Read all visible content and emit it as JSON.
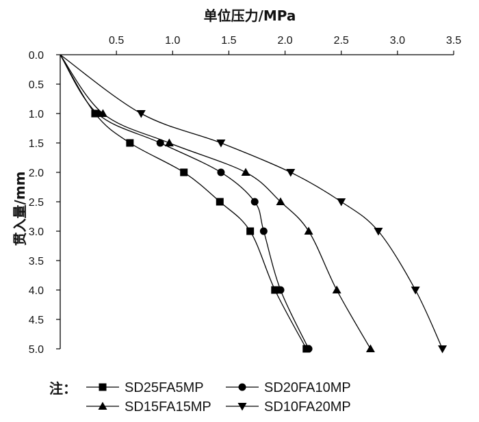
{
  "chart_data": {
    "type": "line",
    "title": "",
    "xlabel": "单位压力/MPa",
    "ylabel": "贯入量/mm",
    "x_ticks": [
      "0.5",
      "1.0",
      "1.5",
      "2.0",
      "2.5",
      "3.0",
      "3.5"
    ],
    "y_ticks": [
      "0.0",
      "0.5",
      "1.0",
      "1.5",
      "2.0",
      "2.5",
      "3.0",
      "3.5",
      "4.0",
      "4.5",
      "5.0"
    ],
    "xlim": [
      0,
      3.5
    ],
    "ylim": [
      0,
      5
    ],
    "x_axis_position": "top",
    "y_axis_inverted": true,
    "grid": false,
    "legend_position": "bottom",
    "series": [
      {
        "name": "SD25FA5MP",
        "marker": "square",
        "points": [
          [
            0,
            0
          ],
          [
            0.31,
            1.0
          ],
          [
            0.62,
            1.5
          ],
          [
            1.1,
            2.0
          ],
          [
            1.42,
            2.5
          ],
          [
            1.69,
            3.0
          ],
          [
            1.91,
            4.0
          ],
          [
            2.19,
            5.0
          ]
        ]
      },
      {
        "name": "SD20FA10MP",
        "marker": "circle",
        "points": [
          [
            0,
            0
          ],
          [
            0.33,
            1.0
          ],
          [
            0.89,
            1.5
          ],
          [
            1.43,
            2.0
          ],
          [
            1.73,
            2.5
          ],
          [
            1.81,
            3.0
          ],
          [
            1.96,
            4.0
          ],
          [
            2.21,
            5.0
          ]
        ]
      },
      {
        "name": "SD15FA15MP",
        "marker": "triangle-up",
        "points": [
          [
            0,
            0
          ],
          [
            0.38,
            1.0
          ],
          [
            0.97,
            1.5
          ],
          [
            1.65,
            2.0
          ],
          [
            1.96,
            2.5
          ],
          [
            2.21,
            3.0
          ],
          [
            2.46,
            4.0
          ],
          [
            2.76,
            5.0
          ]
        ]
      },
      {
        "name": "SD10FA20MP",
        "marker": "triangle-down",
        "points": [
          [
            0,
            0
          ],
          [
            0.72,
            1.0
          ],
          [
            1.43,
            1.5
          ],
          [
            2.05,
            2.0
          ],
          [
            2.5,
            2.5
          ],
          [
            2.83,
            3.0
          ],
          [
            3.16,
            4.0
          ],
          [
            3.4,
            5.0
          ]
        ]
      }
    ]
  },
  "legend": {
    "note_label": "注："
  }
}
